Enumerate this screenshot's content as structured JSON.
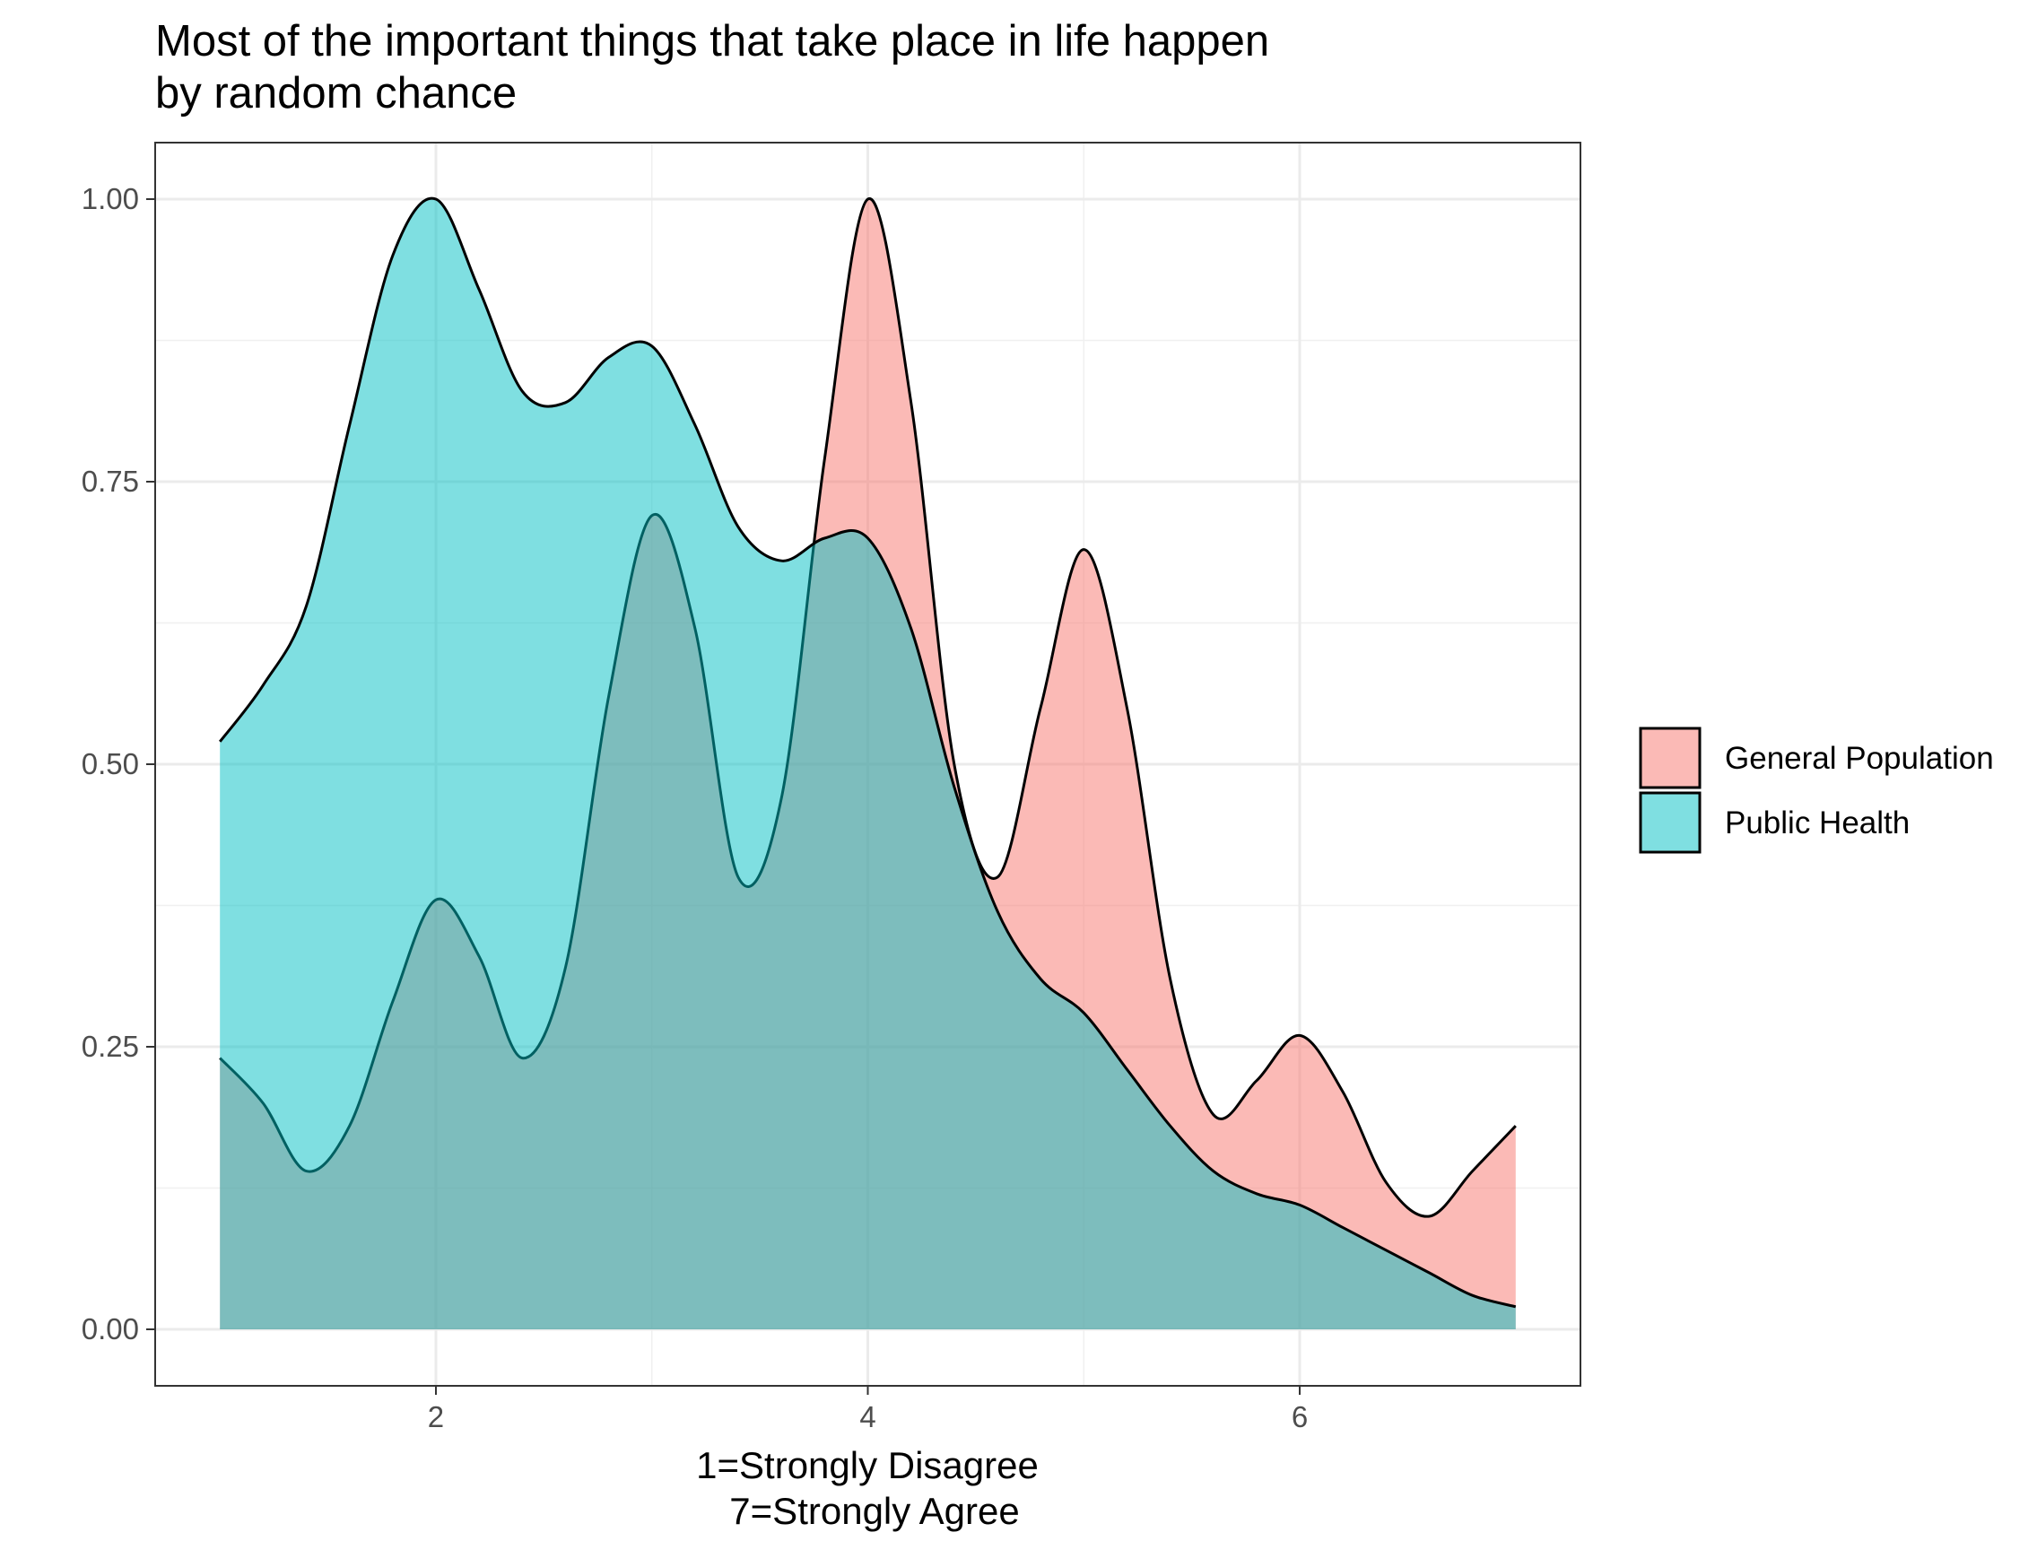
{
  "chart_data": {
    "type": "area",
    "title": "Most of the important things that take place in life happen by random chance",
    "title_lines": [
      "Most of the important things that take place in life happen",
      "by random chance"
    ],
    "xlabel_lines": [
      "1=Strongly Disagree",
      "7=Strongly Agree"
    ],
    "ylabel": "",
    "xlim": [
      0.7,
      7.3
    ],
    "ylim": [
      -0.05,
      1.05
    ],
    "x_ticks": [
      2,
      4,
      6
    ],
    "x_tick_labels": [
      "2",
      "4",
      "6"
    ],
    "y_ticks": [
      0,
      0.25,
      0.5,
      0.75,
      1
    ],
    "y_tick_labels": [
      "0.00",
      "0.25",
      "0.50",
      "0.75",
      "1.00"
    ],
    "grid": true,
    "legend_position": "right",
    "series": [
      {
        "name": "General Population",
        "color": "#F8766D",
        "x": [
          1.0,
          1.2,
          1.4,
          1.6,
          1.8,
          2.0,
          2.2,
          2.4,
          2.6,
          2.8,
          3.0,
          3.2,
          3.4,
          3.6,
          3.8,
          4.0,
          4.2,
          4.4,
          4.6,
          4.8,
          5.0,
          5.2,
          5.4,
          5.6,
          5.8,
          6.0,
          6.2,
          6.4,
          6.6,
          6.8,
          7.0
        ],
        "values": [
          0.24,
          0.2,
          0.14,
          0.18,
          0.29,
          0.38,
          0.33,
          0.24,
          0.32,
          0.56,
          0.72,
          0.62,
          0.4,
          0.47,
          0.77,
          1.0,
          0.82,
          0.5,
          0.4,
          0.55,
          0.69,
          0.55,
          0.31,
          0.19,
          0.22,
          0.26,
          0.21,
          0.13,
          0.1,
          0.14,
          0.18
        ]
      },
      {
        "name": "Public Health",
        "color": "#00BFC4",
        "x": [
          1.0,
          1.2,
          1.4,
          1.6,
          1.8,
          2.0,
          2.2,
          2.4,
          2.6,
          2.8,
          3.0,
          3.2,
          3.4,
          3.6,
          3.8,
          4.0,
          4.2,
          4.4,
          4.6,
          4.8,
          5.0,
          5.2,
          5.4,
          5.6,
          5.8,
          6.0,
          6.2,
          6.4,
          6.6,
          6.8,
          7.0
        ],
        "values": [
          0.52,
          0.57,
          0.64,
          0.8,
          0.95,
          1.0,
          0.92,
          0.83,
          0.82,
          0.86,
          0.87,
          0.8,
          0.71,
          0.68,
          0.7,
          0.7,
          0.62,
          0.48,
          0.37,
          0.31,
          0.28,
          0.23,
          0.18,
          0.14,
          0.12,
          0.11,
          0.09,
          0.07,
          0.05,
          0.03,
          0.02
        ]
      }
    ]
  }
}
